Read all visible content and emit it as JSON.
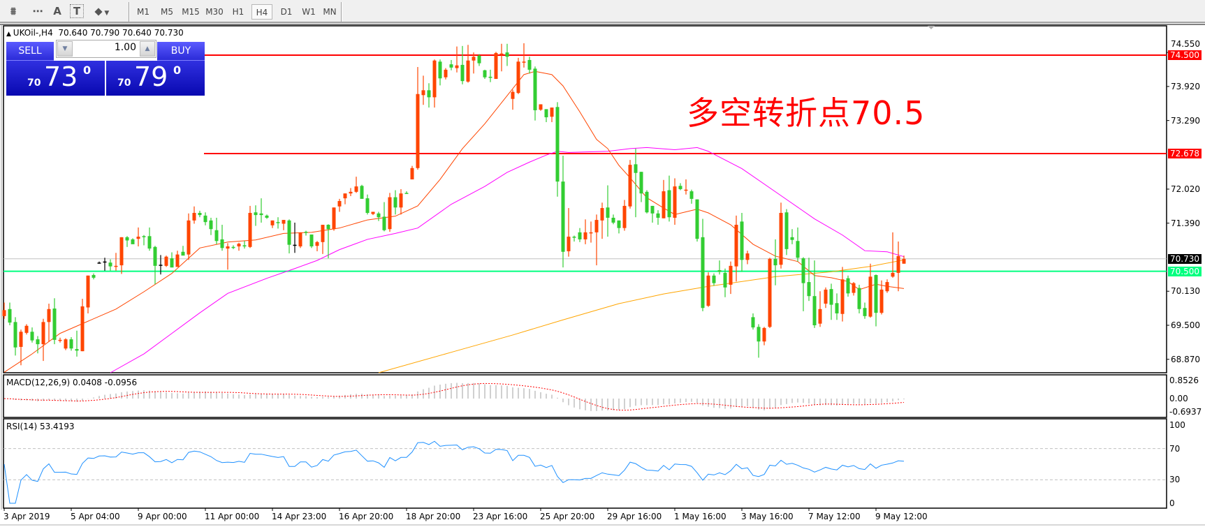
{
  "toolbar": {
    "icons": [
      "elliott-wave-icon",
      "fibonacci-grid-icon",
      "text-icon",
      "text-label-icon",
      "arrows-dropdown-icon"
    ],
    "icon_glyphs": [
      "⩩",
      "⋯",
      "A",
      "T",
      "⬥"
    ],
    "timeframes": [
      "M1",
      "M5",
      "M15",
      "M30",
      "H1",
      "H4",
      "D1",
      "W1",
      "MN"
    ],
    "active_timeframe": "H4"
  },
  "chart": {
    "symbol_line": "UKOil-,H4  70.640 70.790 70.640 70.730",
    "macd_label": "MACD(12,26,9) 0.0408 -0.0956",
    "rsi_label": "RSI(14) 53.4193",
    "annotation": "多空转折点70.5"
  },
  "trade_panel": {
    "sell_label": "SELL",
    "buy_label": "BUY",
    "lots": "1.00",
    "sell_prefix": "70",
    "sell_big": "73",
    "sell_sup": "0",
    "buy_prefix": "70",
    "buy_big": "79",
    "buy_sup": "0"
  },
  "chart_data": {
    "type": "candlestick",
    "symbol": "UKOil-",
    "timeframe": "H4",
    "ylim": [
      68.62,
      75.04
    ],
    "price_ticks": [
      "74.550",
      "73.920",
      "73.290",
      "72.020",
      "71.390",
      "70.130",
      "69.500",
      "68.870"
    ],
    "date_labels": [
      "3 Apr 2019",
      "5 Apr 04:00",
      "9 Apr 00:00",
      "11 Apr 00:00",
      "14 Apr 23:00",
      "16 Apr 20:00",
      "18 Apr 20:00",
      "23 Apr 16:00",
      "25 Apr 20:00",
      "29 Apr 16:00",
      "1 May 16:00",
      "3 May 16:00",
      "7 May 12:00",
      "9 May 12:00"
    ],
    "colors": {
      "up": "#ff4500",
      "down": "#32cd32",
      "doji": "#000000",
      "ma_fast": "#ff4500",
      "ma_mid": "#ff00ff",
      "ma_slow": "#ffa500",
      "rsi": "#1e90ff",
      "macd_hist": "#c0c0c0",
      "macd_signal": "#ff0000"
    },
    "hlines": [
      {
        "price": 74.5,
        "label": "74.500",
        "color": "#ff0000"
      },
      {
        "price": 72.678,
        "label": "72.678",
        "color": "#ff0000"
      },
      {
        "price": 70.73,
        "label": "70.730",
        "color": "#c0c0c0",
        "tag_color": "#000000"
      },
      {
        "price": 70.5,
        "label": "70.500",
        "color": "#00ff7f"
      }
    ],
    "ohlc": [
      [
        69.67,
        69.92,
        69.62,
        69.78
      ],
      [
        69.8,
        69.92,
        69.5,
        69.55
      ],
      [
        69.56,
        69.65,
        68.94,
        69.09
      ],
      [
        69.1,
        69.42,
        68.76,
        69.38
      ],
      [
        69.36,
        69.52,
        69.33,
        69.49
      ],
      [
        69.38,
        69.46,
        69.18,
        69.22
      ],
      [
        69.24,
        69.3,
        68.98,
        69.15
      ],
      [
        69.15,
        69.62,
        68.84,
        69.56
      ],
      [
        69.56,
        69.9,
        69.2,
        69.8
      ],
      [
        69.81,
        70.0,
        69.15,
        69.23
      ],
      [
        69.22,
        69.27,
        69.18,
        69.23
      ],
      [
        69.07,
        69.26,
        69.04,
        69.24
      ],
      [
        69.24,
        69.28,
        69.03,
        69.07
      ],
      [
        69.06,
        69.4,
        68.92,
        69.03
      ],
      [
        69.02,
        69.99,
        69.02,
        69.85
      ],
      [
        69.83,
        70.42,
        69.72,
        70.42
      ],
      [
        70.43,
        70.46,
        70.35,
        70.38
      ],
      [
        70.66,
        70.68,
        70.64,
        70.66
      ],
      [
        70.68,
        70.75,
        70.51,
        70.68
      ],
      [
        70.66,
        70.72,
        70.51,
        70.59
      ],
      [
        70.59,
        70.84,
        70.51,
        70.6
      ],
      [
        70.61,
        71.13,
        70.45,
        71.13
      ],
      [
        71.13,
        71.15,
        70.95,
        71.07
      ],
      [
        71.09,
        71.11,
        71.02,
        71.0
      ],
      [
        71.1,
        71.31,
        70.96,
        71.14
      ],
      [
        71.15,
        71.17,
        70.98,
        71.14
      ],
      [
        71.15,
        71.31,
        70.88,
        70.92
      ],
      [
        70.95,
        70.97,
        70.26,
        70.6
      ],
      [
        70.62,
        70.8,
        70.44,
        70.62
      ],
      [
        70.6,
        70.79,
        70.58,
        70.77
      ],
      [
        70.74,
        70.85,
        70.57,
        70.57
      ],
      [
        70.58,
        70.88,
        70.58,
        70.81
      ],
      [
        70.86,
        70.97,
        70.8,
        70.79
      ],
      [
        70.81,
        71.57,
        70.71,
        71.44
      ],
      [
        71.44,
        71.7,
        71.38,
        71.58
      ],
      [
        71.58,
        71.62,
        71.5,
        71.54
      ],
      [
        71.53,
        71.59,
        71.35,
        71.41
      ],
      [
        71.44,
        71.49,
        71.17,
        71.28
      ],
      [
        71.26,
        71.49,
        71.0,
        71.06
      ],
      [
        71.09,
        71.36,
        70.88,
        70.93
      ],
      [
        70.92,
        71.02,
        70.53,
        70.96
      ],
      [
        70.95,
        70.98,
        70.91,
        70.94
      ],
      [
        70.96,
        71.03,
        70.88,
        71.01
      ],
      [
        70.98,
        71.06,
        70.92,
        70.96
      ],
      [
        70.95,
        71.71,
        70.93,
        71.58
      ],
      [
        71.59,
        71.72,
        71.34,
        71.54
      ],
      [
        71.57,
        71.85,
        71.4,
        71.54
      ],
      [
        71.53,
        71.55,
        71.47,
        71.49
      ],
      [
        71.35,
        71.44,
        71.3,
        71.44
      ],
      [
        71.41,
        71.5,
        71.29,
        71.4
      ],
      [
        71.38,
        71.45,
        71.26,
        71.45
      ],
      [
        71.44,
        71.46,
        70.83,
        70.99
      ],
      [
        70.99,
        71.4,
        70.84,
        70.99
      ],
      [
        70.96,
        71.22,
        70.93,
        71.22
      ],
      [
        71.23,
        71.25,
        71.16,
        71.22
      ],
      [
        71.18,
        71.18,
        70.93,
        70.96
      ],
      [
        70.97,
        71.06,
        70.87,
        71.04
      ],
      [
        71.04,
        71.36,
        70.82,
        71.36
      ],
      [
        71.36,
        71.37,
        70.74,
        71.28
      ],
      [
        71.28,
        71.68,
        71.25,
        71.68
      ],
      [
        71.7,
        71.84,
        71.6,
        71.8
      ],
      [
        71.85,
        71.94,
        71.74,
        71.94
      ],
      [
        71.94,
        72.04,
        71.89,
        71.97
      ],
      [
        71.97,
        72.25,
        71.95,
        72.07
      ],
      [
        72.08,
        72.1,
        71.85,
        71.84
      ],
      [
        71.85,
        71.92,
        71.55,
        71.58
      ],
      [
        71.56,
        71.6,
        71.54,
        71.6
      ],
      [
        71.57,
        71.6,
        71.43,
        71.5
      ],
      [
        71.51,
        71.78,
        71.24,
        71.26
      ],
      [
        71.28,
        71.95,
        71.23,
        71.87
      ],
      [
        71.87,
        72.0,
        71.55,
        71.68
      ],
      [
        71.68,
        72.02,
        71.55,
        71.94
      ],
      [
        71.95,
        71.98,
        71.94,
        71.94
      ],
      [
        72.2,
        72.45,
        72.2,
        72.41
      ],
      [
        72.41,
        74.28,
        72.38,
        73.78
      ],
      [
        73.76,
        74.12,
        73.58,
        73.85
      ],
      [
        73.85,
        73.98,
        73.53,
        73.72
      ],
      [
        73.72,
        74.42,
        73.53,
        74.4
      ],
      [
        74.38,
        74.42,
        73.94,
        74.07
      ],
      [
        74.09,
        74.26,
        74.05,
        74.23
      ],
      [
        74.33,
        74.41,
        74.22,
        74.27
      ],
      [
        74.26,
        74.66,
        74.18,
        74.31
      ],
      [
        74.32,
        74.67,
        73.96,
        74.02
      ],
      [
        74.01,
        74.69,
        73.99,
        74.4
      ],
      [
        74.4,
        74.55,
        74.16,
        74.47
      ],
      [
        74.49,
        74.52,
        74.3,
        74.35
      ],
      [
        74.22,
        74.23,
        74.06,
        74.09
      ],
      [
        74.1,
        74.23,
        74.0,
        74.08
      ],
      [
        74.06,
        74.56,
        74.06,
        74.54
      ],
      [
        74.52,
        74.71,
        74.2,
        74.53
      ],
      [
        74.55,
        74.71,
        74.3,
        74.47
      ],
      [
        73.69,
        73.86,
        73.49,
        73.82
      ],
      [
        73.8,
        74.45,
        73.78,
        74.38
      ],
      [
        74.37,
        74.72,
        74.27,
        74.38
      ],
      [
        74.41,
        74.47,
        74.16,
        74.23
      ],
      [
        74.25,
        74.29,
        73.29,
        73.48
      ],
      [
        73.49,
        73.59,
        73.47,
        73.59
      ],
      [
        73.5,
        73.5,
        73.26,
        73.35
      ],
      [
        73.36,
        73.53,
        73.26,
        73.53
      ],
      [
        73.54,
        73.63,
        71.88,
        72.16
      ],
      [
        72.16,
        72.64,
        70.57,
        70.86
      ],
      [
        70.87,
        71.67,
        70.77,
        71.14
      ],
      [
        71.14,
        71.16,
        71.05,
        71.13
      ],
      [
        71.22,
        71.3,
        71.04,
        71.09
      ],
      [
        71.09,
        71.46,
        71.0,
        71.22
      ],
      [
        71.21,
        71.42,
        71.03,
        71.22
      ],
      [
        71.22,
        71.55,
        70.61,
        71.45
      ],
      [
        71.44,
        71.77,
        71.1,
        71.67
      ],
      [
        71.68,
        72.09,
        71.14,
        71.49
      ],
      [
        71.49,
        71.55,
        71.37,
        71.4
      ],
      [
        71.44,
        71.44,
        71.2,
        71.3
      ],
      [
        71.3,
        71.82,
        71.25,
        71.71
      ],
      [
        71.7,
        72.56,
        71.66,
        72.47
      ],
      [
        72.48,
        72.77,
        71.5,
        72.32
      ],
      [
        72.34,
        72.34,
        71.78,
        71.94
      ],
      [
        71.97,
        72.0,
        71.57,
        71.59
      ],
      [
        71.71,
        71.71,
        71.4,
        71.57
      ],
      [
        71.57,
        71.63,
        71.36,
        71.49
      ],
      [
        71.48,
        72.19,
        71.48,
        71.98
      ],
      [
        72.0,
        72.27,
        71.42,
        71.5
      ],
      [
        71.49,
        72.22,
        71.36,
        72.07
      ],
      [
        72.08,
        72.13,
        72.0,
        72.02
      ],
      [
        72.0,
        72.2,
        71.92,
        72.01
      ],
      [
        71.98,
        72.01,
        71.75,
        71.84
      ],
      [
        71.83,
        71.83,
        71.05,
        71.1
      ],
      [
        71.13,
        71.47,
        69.76,
        69.82
      ],
      [
        69.86,
        70.48,
        69.84,
        70.42
      ],
      [
        70.42,
        70.46,
        70.23,
        70.28
      ],
      [
        70.52,
        70.7,
        70.44,
        70.49
      ],
      [
        70.47,
        70.55,
        70.02,
        70.2
      ],
      [
        70.25,
        70.68,
        70.08,
        70.6
      ],
      [
        70.59,
        71.53,
        70.31,
        71.36
      ],
      [
        71.42,
        71.58,
        70.49,
        70.71
      ],
      [
        70.71,
        70.88,
        70.63,
        70.83
      ],
      [
        69.65,
        69.72,
        69.42,
        69.46
      ],
      [
        69.47,
        69.52,
        68.9,
        69.2
      ],
      [
        69.2,
        69.47,
        69.13,
        69.45
      ],
      [
        69.47,
        70.75,
        69.45,
        70.73
      ],
      [
        70.73,
        71.09,
        70.24,
        70.61
      ],
      [
        70.62,
        71.77,
        70.55,
        71.58
      ],
      [
        71.59,
        71.65,
        70.8,
        70.91
      ],
      [
        71.13,
        71.28,
        71.0,
        71.08
      ],
      [
        71.06,
        71.31,
        70.68,
        70.75
      ],
      [
        70.74,
        70.76,
        69.76,
        70.28
      ],
      [
        70.3,
        70.75,
        69.95,
        70.04
      ],
      [
        70.04,
        70.7,
        69.45,
        69.5
      ],
      [
        69.53,
        70.13,
        69.47,
        69.8
      ],
      [
        69.9,
        70.2,
        69.82,
        70.16
      ],
      [
        70.17,
        70.27,
        69.6,
        69.88
      ],
      [
        69.91,
        70.09,
        69.6,
        69.72
      ],
      [
        69.71,
        70.58,
        69.57,
        70.35
      ],
      [
        70.37,
        70.42,
        70.03,
        70.09
      ],
      [
        70.1,
        70.3,
        70.05,
        70.28
      ],
      [
        70.19,
        70.25,
        69.72,
        69.8
      ],
      [
        69.82,
        69.92,
        69.62,
        69.67
      ],
      [
        69.66,
        70.64,
        69.64,
        70.4
      ],
      [
        70.43,
        70.44,
        69.48,
        69.73
      ],
      [
        69.73,
        70.33,
        69.7,
        70.16
      ],
      [
        70.13,
        70.35,
        70.1,
        70.3
      ],
      [
        70.4,
        71.22,
        70.38,
        70.47
      ],
      [
        70.47,
        71.05,
        70.13,
        70.78
      ],
      [
        70.64,
        70.79,
        70.64,
        70.73
      ]
    ],
    "ma_fast": [
      [
        0,
        68.63
      ],
      [
        5,
        68.97
      ],
      [
        10,
        69.35
      ],
      [
        20,
        69.8
      ],
      [
        25,
        70.12
      ],
      [
        30,
        70.46
      ],
      [
        35,
        70.93
      ],
      [
        40,
        71.04
      ],
      [
        45,
        71.08
      ],
      [
        50,
        71.2
      ],
      [
        55,
        71.22
      ],
      [
        60,
        71.3
      ],
      [
        65,
        71.45
      ],
      [
        70,
        71.52
      ],
      [
        74,
        71.71
      ],
      [
        78,
        72.2
      ],
      [
        82,
        72.77
      ],
      [
        86,
        73.23
      ],
      [
        90,
        73.75
      ],
      [
        93,
        74.14
      ],
      [
        95,
        74.2
      ],
      [
        98,
        74.14
      ],
      [
        100,
        73.93
      ],
      [
        103,
        73.45
      ],
      [
        106,
        72.94
      ],
      [
        108,
        72.77
      ],
      [
        110,
        72.46
      ],
      [
        112,
        72.23
      ],
      [
        115,
        71.86
      ],
      [
        118,
        71.67
      ],
      [
        120,
        71.55
      ],
      [
        122,
        71.6
      ],
      [
        124,
        71.65
      ],
      [
        126,
        71.58
      ],
      [
        130,
        71.36
      ],
      [
        134,
        71.0
      ],
      [
        138,
        70.78
      ],
      [
        142,
        70.68
      ],
      [
        145,
        70.42
      ],
      [
        148,
        70.38
      ],
      [
        151,
        70.31
      ],
      [
        153,
        70.16
      ],
      [
        156,
        70.26
      ],
      [
        158,
        70.22
      ],
      [
        161,
        70.18
      ]
    ],
    "ma_mid": [
      [
        19,
        68.62
      ],
      [
        25,
        68.97
      ],
      [
        30,
        69.35
      ],
      [
        35,
        69.73
      ],
      [
        40,
        70.09
      ],
      [
        47,
        70.37
      ],
      [
        52,
        70.55
      ],
      [
        56,
        70.7
      ],
      [
        60,
        70.9
      ],
      [
        65,
        71.09
      ],
      [
        70,
        71.2
      ],
      [
        74,
        71.3
      ],
      [
        80,
        71.74
      ],
      [
        86,
        72.07
      ],
      [
        90,
        72.33
      ],
      [
        94,
        72.52
      ],
      [
        97,
        72.65
      ],
      [
        99,
        72.72
      ],
      [
        101,
        72.7
      ],
      [
        108,
        72.72
      ],
      [
        112,
        72.77
      ],
      [
        115,
        72.79
      ],
      [
        120,
        72.75
      ],
      [
        124,
        72.79
      ],
      [
        126,
        72.72
      ],
      [
        132,
        72.4
      ],
      [
        139,
        71.9
      ],
      [
        145,
        71.47
      ],
      [
        150,
        71.17
      ],
      [
        154,
        70.88
      ],
      [
        158,
        70.86
      ],
      [
        161,
        70.77
      ]
    ],
    "ma_slow": [
      [
        67,
        68.62
      ],
      [
        80,
        69.0
      ],
      [
        91,
        69.32
      ],
      [
        100,
        69.6
      ],
      [
        110,
        69.9
      ],
      [
        118,
        70.08
      ],
      [
        126,
        70.22
      ],
      [
        138,
        70.4
      ],
      [
        148,
        70.49
      ],
      [
        155,
        70.59
      ],
      [
        161,
        70.71
      ]
    ],
    "macd": {
      "params": [
        12,
        26,
        9
      ],
      "ticks": [
        "0.8526",
        "0.00",
        "-0.6937"
      ]
    },
    "rsi": {
      "period": 14,
      "levels": [
        70,
        30
      ],
      "ticks": [
        "100",
        "70",
        "30",
        "0"
      ]
    }
  }
}
